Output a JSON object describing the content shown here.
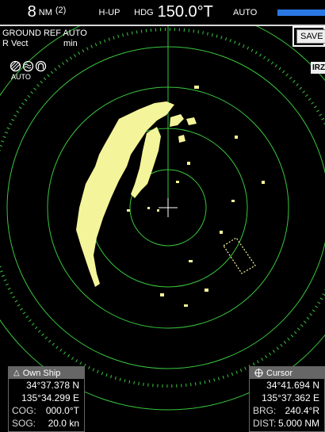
{
  "header": {
    "range_value": "8",
    "range_unit": "NM",
    "range_sub": "(2)",
    "orientation": "H-UP",
    "heading_label": "HDG",
    "heading_value": "150.0°T",
    "gain_mode": "AUTO",
    "gain_level": 1.0
  },
  "overlay": {
    "ground_ref": "GROUND REF AUTO",
    "vector": "R Vect",
    "vector_unit": "min",
    "save_label": "SAVE",
    "irz_label": "IRZ",
    "icons_auto": "AUTO",
    "icons": [
      "rain-clutter-icon",
      "sea-clutter-icon",
      "tune-icon"
    ]
  },
  "own_ship": {
    "title": "Own Ship",
    "lat": "34°37.378 N",
    "lon": "135°34.299 E",
    "cog_label": "COG:",
    "cog_value": "000.0°T",
    "sog_label": "SOG:",
    "sog_value": "20.0 kn"
  },
  "cursor": {
    "title": "Cursor",
    "lat": "34°41.694 N",
    "lon": "135°37.362 E",
    "brg_label": "BRG:",
    "brg_value": "240.4°R",
    "dist_label": "DIST:",
    "dist_value": "5.000 NM"
  },
  "colors": {
    "rings": "#39c63d",
    "echo": "#f4f49a",
    "gain_bar": "#2a78e4"
  }
}
